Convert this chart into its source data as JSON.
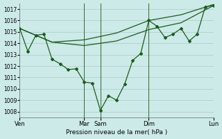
{
  "bg_color": "#cceae8",
  "grid_color": "#b0c8c8",
  "line_color": "#1a5c1a",
  "xlabel_text": "Pression niveau de la mer( hPa )",
  "ylim": [
    1007.5,
    1017.5
  ],
  "yticks": [
    1008,
    1009,
    1010,
    1011,
    1012,
    1013,
    1014,
    1015,
    1016,
    1017
  ],
  "xlim": [
    0,
    288
  ],
  "xtick_positions": [
    0,
    96,
    120,
    192,
    288
  ],
  "xtick_labels": [
    "Ven",
    "Mar",
    "Sam",
    "Dim",
    "Lun"
  ],
  "vline_positions": [
    96,
    120,
    192,
    288
  ],
  "series1_x": [
    0,
    12,
    24,
    36,
    48,
    60,
    72,
    84,
    96,
    108,
    120,
    132,
    144,
    156,
    168,
    180,
    192,
    204,
    216,
    228,
    240,
    252,
    264,
    276,
    288
  ],
  "series1_y": [
    1015.3,
    1013.3,
    1014.7,
    1014.8,
    1012.6,
    1012.2,
    1011.7,
    1011.75,
    1010.6,
    1010.5,
    1008.1,
    1009.4,
    1009.0,
    1010.4,
    1012.5,
    1013.1,
    1016.0,
    1015.5,
    1014.5,
    1014.8,
    1015.3,
    1014.2,
    1014.8,
    1017.2,
    1017.3
  ],
  "series2_x": [
    0,
    48,
    96,
    144,
    192,
    240,
    288
  ],
  "series2_y": [
    1015.3,
    1014.1,
    1014.3,
    1014.9,
    1016.0,
    1016.5,
    1017.4
  ],
  "series3_x": [
    0,
    48,
    96,
    144,
    192,
    240,
    288
  ],
  "series3_y": [
    1015.3,
    1014.1,
    1013.8,
    1014.2,
    1015.2,
    1015.8,
    1017.3
  ]
}
